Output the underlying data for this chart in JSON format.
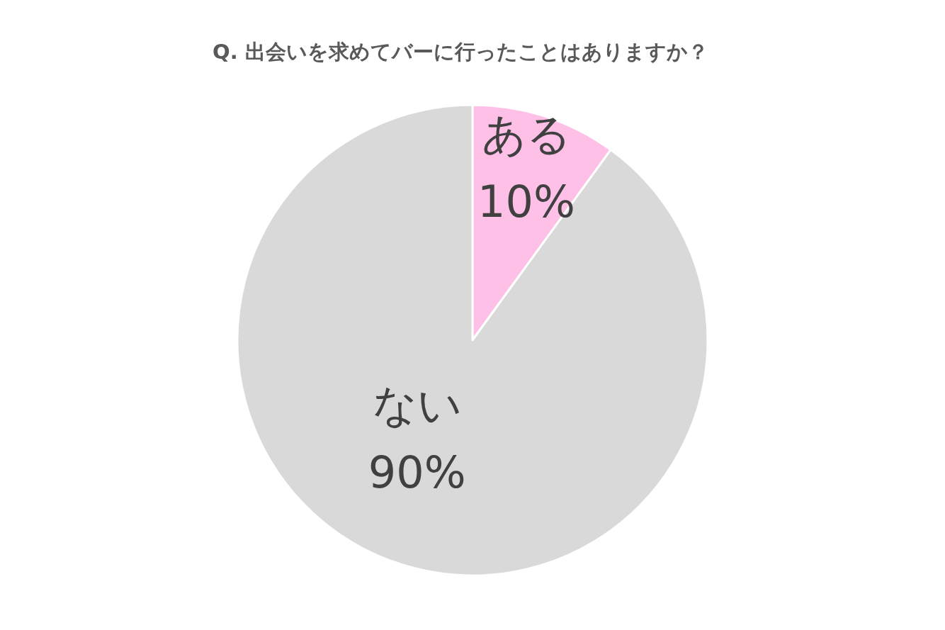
{
  "chart_data": {
    "type": "pie",
    "title": "Q. 出会いを求めてバーに行ったことはありますか？",
    "categories": [
      "ある",
      "ない"
    ],
    "values": [
      10,
      90
    ],
    "colors": [
      "#ffc0e8",
      "#d9d9d9"
    ],
    "value_labels": [
      "10%",
      "90%"
    ],
    "legend": false
  }
}
